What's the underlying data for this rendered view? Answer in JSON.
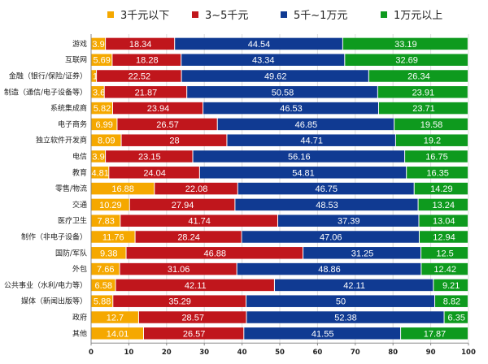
{
  "chart_data": {
    "type": "bar",
    "orientation": "horizontal",
    "stacked": true,
    "legend_position": "top",
    "grid": true,
    "xlim": [
      0,
      100
    ],
    "xticks": [
      "0",
      "10",
      "20",
      "30",
      "40",
      "50",
      "60",
      "70",
      "80",
      "90",
      "100"
    ],
    "categories": [
      "游戏",
      "互联网",
      "金融（银行/保险/证券）",
      "制造（通信/电子设备等）",
      "系统集成商",
      "电子商务",
      "独立软件开发商",
      "电信",
      "教育",
      "零售/物流",
      "交通",
      "医疗卫生",
      "制作（非电子设备）",
      "国防/军队",
      "外包",
      "公共事业（水利/电力等）",
      "媒体（新闻出版等）",
      "政府",
      "其他"
    ],
    "series": [
      {
        "name": "3千元以下",
        "color": "#F5A800",
        "values": [
          3.9,
          5.69,
          1.53,
          3.6,
          5.82,
          6.99,
          8.09,
          3.9,
          4.81,
          16.88,
          10.29,
          7.83,
          11.76,
          9.38,
          7.66,
          6.58,
          5.88,
          12.7,
          14.01
        ]
      },
      {
        "name": "3~5千元",
        "color": "#C0161C",
        "values": [
          18.34,
          18.28,
          22.52,
          21.87,
          23.94,
          26.57,
          28,
          23.15,
          24.04,
          22.08,
          27.94,
          41.74,
          28.24,
          46.88,
          31.06,
          42.11,
          35.29,
          28.57,
          26.57
        ]
      },
      {
        "name": "5千~1万元",
        "color": "#103A92",
        "values": [
          44.54,
          43.34,
          49.62,
          50.58,
          46.53,
          46.85,
          44.71,
          56.16,
          54.81,
          46.75,
          48.53,
          37.39,
          47.06,
          31.25,
          48.86,
          42.11,
          50,
          52.38,
          41.55
        ]
      },
      {
        "name": "1万元以上",
        "color": "#0E9A1E",
        "values": [
          33.19,
          32.69,
          26.34,
          23.91,
          23.71,
          19.58,
          19.2,
          16.75,
          16.35,
          14.29,
          13.24,
          13.04,
          12.94,
          12.5,
          12.42,
          9.21,
          8.82,
          6.35,
          17.87
        ]
      }
    ],
    "data_labels": [
      [
        "3.9",
        "18.34",
        "44.54",
        "33.19"
      ],
      [
        "5.69",
        "18.28",
        "43.34",
        "32.69"
      ],
      [
        "1.53",
        "22.52",
        "49.62",
        "26.34"
      ],
      [
        "3.6",
        "21.87",
        "50.58",
        "23.91"
      ],
      [
        "5.82",
        "23.94",
        "46.53",
        "23.71"
      ],
      [
        "6.99",
        "26.57",
        "46.85",
        "19.58"
      ],
      [
        "8.09",
        "28",
        "44.71",
        "19.2"
      ],
      [
        "3.9",
        "23.15",
        "56.16",
        "16.75"
      ],
      [
        "4.81",
        "24.04",
        "54.81",
        "16.35"
      ],
      [
        "16.88",
        "22.08",
        "46.75",
        "14.29"
      ],
      [
        "10.29",
        "27.94",
        "48.53",
        "13.24"
      ],
      [
        "7.83",
        "41.74",
        "37.39",
        "13.04"
      ],
      [
        "11.76",
        "28.24",
        "47.06",
        "12.94"
      ],
      [
        "9.38",
        "46.88",
        "31.25",
        "12.5"
      ],
      [
        "7.66",
        "31.06",
        "48.86",
        "12.42"
      ],
      [
        "6.58",
        "42.11",
        "42.11",
        "9.21"
      ],
      [
        "5.88",
        "35.29",
        "50",
        "8.82"
      ],
      [
        "12.7",
        "28.57",
        "52.38",
        "6.35"
      ],
      [
        "14.01",
        "26.57",
        "41.55",
        "17.87"
      ]
    ]
  }
}
